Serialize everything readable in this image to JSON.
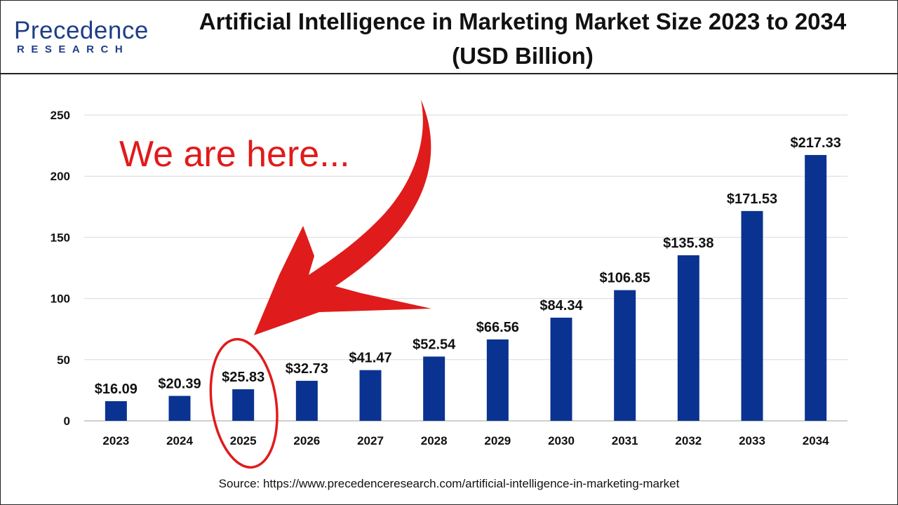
{
  "logo": {
    "main": "Precedence",
    "sub": "RESEARCH"
  },
  "title": "Artificial Intelligence in Marketing Market Size 2023 to 2034 (USD Billion)",
  "annotation": "We are here...",
  "source": "Source: https://www.precedenceresearch.com/artificial-intelligence-in-marketing-market",
  "colors": {
    "bar": "#0a3391",
    "annotation": "#e01b1b",
    "logo": "#1f3e86"
  },
  "chart_data": {
    "type": "bar",
    "title": "Artificial Intelligence in Marketing Market Size 2023 to 2034 (USD Billion)",
    "categories": [
      "2023",
      "2024",
      "2025",
      "2026",
      "2027",
      "2028",
      "2029",
      "2030",
      "2031",
      "2032",
      "2033",
      "2034"
    ],
    "values": [
      16.09,
      20.39,
      25.83,
      32.73,
      41.47,
      52.54,
      66.56,
      84.34,
      106.85,
      135.38,
      171.53,
      217.33
    ],
    "value_labels": [
      "$16.09",
      "$20.39",
      "$25.83",
      "$32.73",
      "$41.47",
      "$52.54",
      "$66.56",
      "$84.34",
      "$106.85",
      "$135.38",
      "$171.53",
      "$217.33"
    ],
    "yticks": [
      0,
      50,
      100,
      150,
      200,
      250
    ],
    "ylim": [
      0,
      250
    ],
    "grid": true,
    "legend": "none",
    "highlighted_category": "2025",
    "xlabel": "",
    "ylabel": ""
  }
}
